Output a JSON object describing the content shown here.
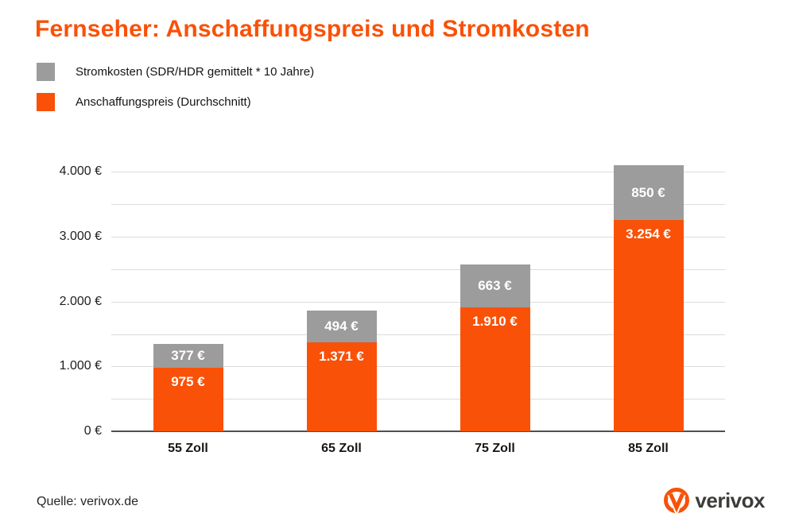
{
  "title": "Fernseher: Anschaffungspreis und Stromkosten",
  "colors": {
    "accent_orange": "#f95108",
    "series_gray": "#9c9c9c",
    "gridline": "#dcdcdc",
    "axis": "#4f4f4f"
  },
  "legend": [
    {
      "label": "Stromkosten (SDR/HDR gemittelt * 10 Jahre)",
      "color": "#9c9c9c"
    },
    {
      "label": "Anschaffungspreis (Durchschnitt)",
      "color": "#f95108"
    }
  ],
  "chart_data": {
    "type": "bar",
    "stacked": true,
    "title": "Fernseher: Anschaffungspreis und Stromkosten",
    "categories": [
      "55 Zoll",
      "65 Zoll",
      "75 Zoll",
      "85 Zoll"
    ],
    "series": [
      {
        "name": "Anschaffungspreis (Durchschnitt)",
        "key": "anschaffungspreis",
        "color": "#f95108",
        "values": [
          975,
          1371,
          1910,
          3254
        ],
        "labels": [
          "975 €",
          "1.371 €",
          "1.910 €",
          "3.254 €"
        ]
      },
      {
        "name": "Stromkosten (SDR/HDR gemittelt * 10 Jahre)",
        "key": "stromkosten",
        "color": "#9c9c9c",
        "values": [
          377,
          494,
          663,
          850
        ],
        "labels": [
          "377 €",
          "494 €",
          "663 €",
          "850 €"
        ]
      }
    ],
    "totals": [
      1352,
      1865,
      2573,
      4104
    ],
    "xlabel": "",
    "ylabel": "",
    "ylim": [
      0,
      4200
    ],
    "y_ticks": [
      0,
      1000,
      2000,
      3000,
      4000
    ],
    "y_tick_labels": [
      "0 €",
      "1.000 €",
      "2.000 €",
      "3.000 €",
      "4.000 €"
    ],
    "grid": true,
    "grid_minor_step": 500,
    "legend_position": "top-left"
  },
  "footer": {
    "source": "Quelle: verivox.de",
    "logo_text": "verivox"
  }
}
